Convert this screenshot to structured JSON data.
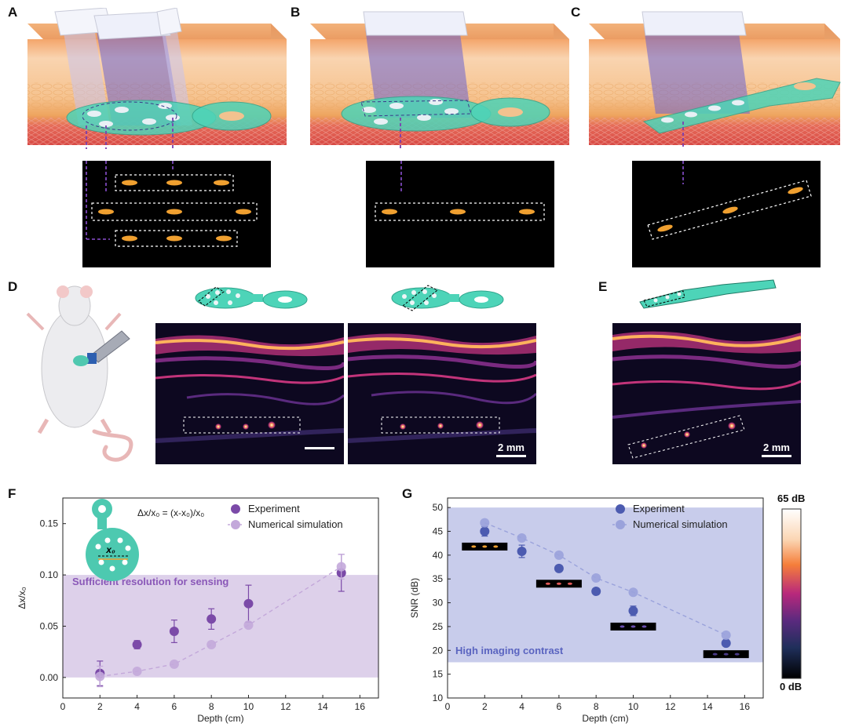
{
  "panels": {
    "A": "A",
    "B": "B",
    "C": "C",
    "D": "D",
    "E": "E",
    "F": "F",
    "G": "G"
  },
  "scalebar": {
    "d": "2 mm",
    "e": "2 mm"
  },
  "colorbar": {
    "max": "65 dB",
    "min": "0 dB"
  },
  "chart_data": [
    {
      "type": "scatter",
      "panel": "F",
      "formula": "Δx/x₀ = (x-x₀)/x₀",
      "marker_label": "x₀",
      "region_label": "Sufficient resolution for sensing",
      "region_y": [
        0,
        0.1
      ],
      "xlabel": "Depth (cm)",
      "ylabel": "Δx/x₀",
      "xlim": [
        0,
        17
      ],
      "ylim": [
        -0.02,
        0.175
      ],
      "xticks": [
        0,
        2,
        4,
        6,
        8,
        10,
        12,
        14,
        16
      ],
      "yticks": [
        0.0,
        0.05,
        0.1,
        0.15
      ],
      "ytick_labels": [
        "0.00",
        "0.05",
        "0.10",
        "0.15"
      ],
      "legend_position": "top-right",
      "series": [
        {
          "name": "Experiment",
          "color": "#7b4aa8",
          "x": [
            2,
            4,
            6,
            8,
            10,
            15
          ],
          "y": [
            0.004,
            0.032,
            0.045,
            0.057,
            0.072,
            0.102
          ],
          "err": [
            0.012,
            0.004,
            0.011,
            0.01,
            0.018,
            0.018
          ]
        },
        {
          "name": "Numerical simulation",
          "color": "#c3a8da",
          "x": [
            2,
            4,
            6,
            8,
            10,
            15
          ],
          "y": [
            0.001,
            0.006,
            0.013,
            0.032,
            0.051,
            0.108
          ],
          "err": [
            0.01,
            0,
            0,
            0,
            0,
            0.012
          ]
        }
      ]
    },
    {
      "type": "scatter",
      "panel": "G",
      "region_label": "High imaging contrast",
      "region_y": [
        17.5,
        50
      ],
      "xlabel": "Depth (cm)",
      "ylabel": "SNR (dB)",
      "xlim": [
        0,
        17
      ],
      "ylim": [
        10,
        52
      ],
      "xticks": [
        0,
        2,
        4,
        6,
        8,
        10,
        12,
        14,
        16
      ],
      "yticks": [
        10,
        15,
        20,
        25,
        30,
        35,
        40,
        45,
        50
      ],
      "legend_position": "top-right",
      "series": [
        {
          "name": "Experiment",
          "color": "#4c5bb0",
          "x": [
            2,
            4,
            6,
            8,
            10,
            15
          ],
          "y": [
            45.0,
            40.8,
            37.2,
            32.4,
            28.3,
            21.5
          ],
          "err": [
            1.0,
            1.3,
            0.6,
            0.5,
            1.0,
            0.6
          ]
        },
        {
          "name": "Numerical simulation",
          "color": "#9aa2db",
          "x": [
            2,
            4,
            6,
            8,
            10,
            15
          ],
          "y": [
            46.8,
            43.6,
            40.0,
            35.2,
            32.2,
            23.2
          ],
          "err": [
            0,
            0,
            0,
            0,
            0,
            0
          ]
        }
      ]
    }
  ]
}
